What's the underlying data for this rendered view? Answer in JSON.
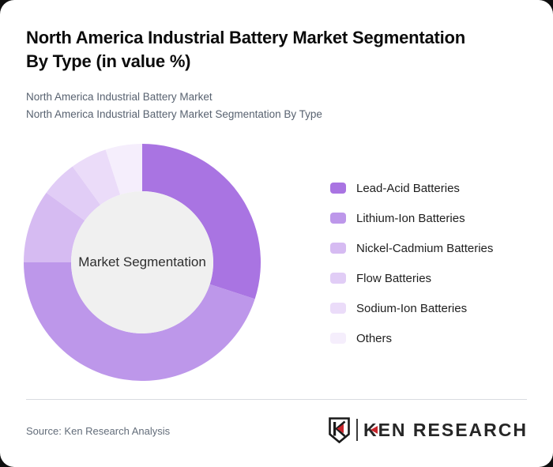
{
  "page": {
    "title": "North America Industrial Battery Market Segmentation By Type (in value %)",
    "subtitle_line1": "North America Industrial Battery Market",
    "subtitle_line2": "North America Industrial Battery Market Segmentation By Type",
    "source": "Source: Ken Research Analysis"
  },
  "logo": {
    "brand": "KEN RESEARCH",
    "monogram": "K",
    "accent_color": "#c8262c",
    "ink_color": "#1a1a1a"
  },
  "chart_data": {
    "type": "pie",
    "variant": "donut",
    "title": "North America Industrial Battery Market Segmentation By Type (in value %)",
    "center_label": "Market Segmentation",
    "unit": "%",
    "categories": [
      "Lead-Acid Batteries",
      "Lithium-Ion Batteries",
      "Nickel-Cadmium Batteries",
      "Flow Batteries",
      "Sodium-Ion Batteries",
      "Others"
    ],
    "values": [
      30,
      45,
      10,
      5,
      5,
      5
    ],
    "colors": [
      "#a974e2",
      "#bd97ea",
      "#d6bbf2",
      "#e1cdf6",
      "#ebdcf9",
      "#f5eefc"
    ],
    "start_angle_deg": 0,
    "clockwise": true,
    "inner_radius_ratio": 0.6,
    "center_fill": "#f0f0f0",
    "legend_position": "right",
    "data_labels": false
  }
}
